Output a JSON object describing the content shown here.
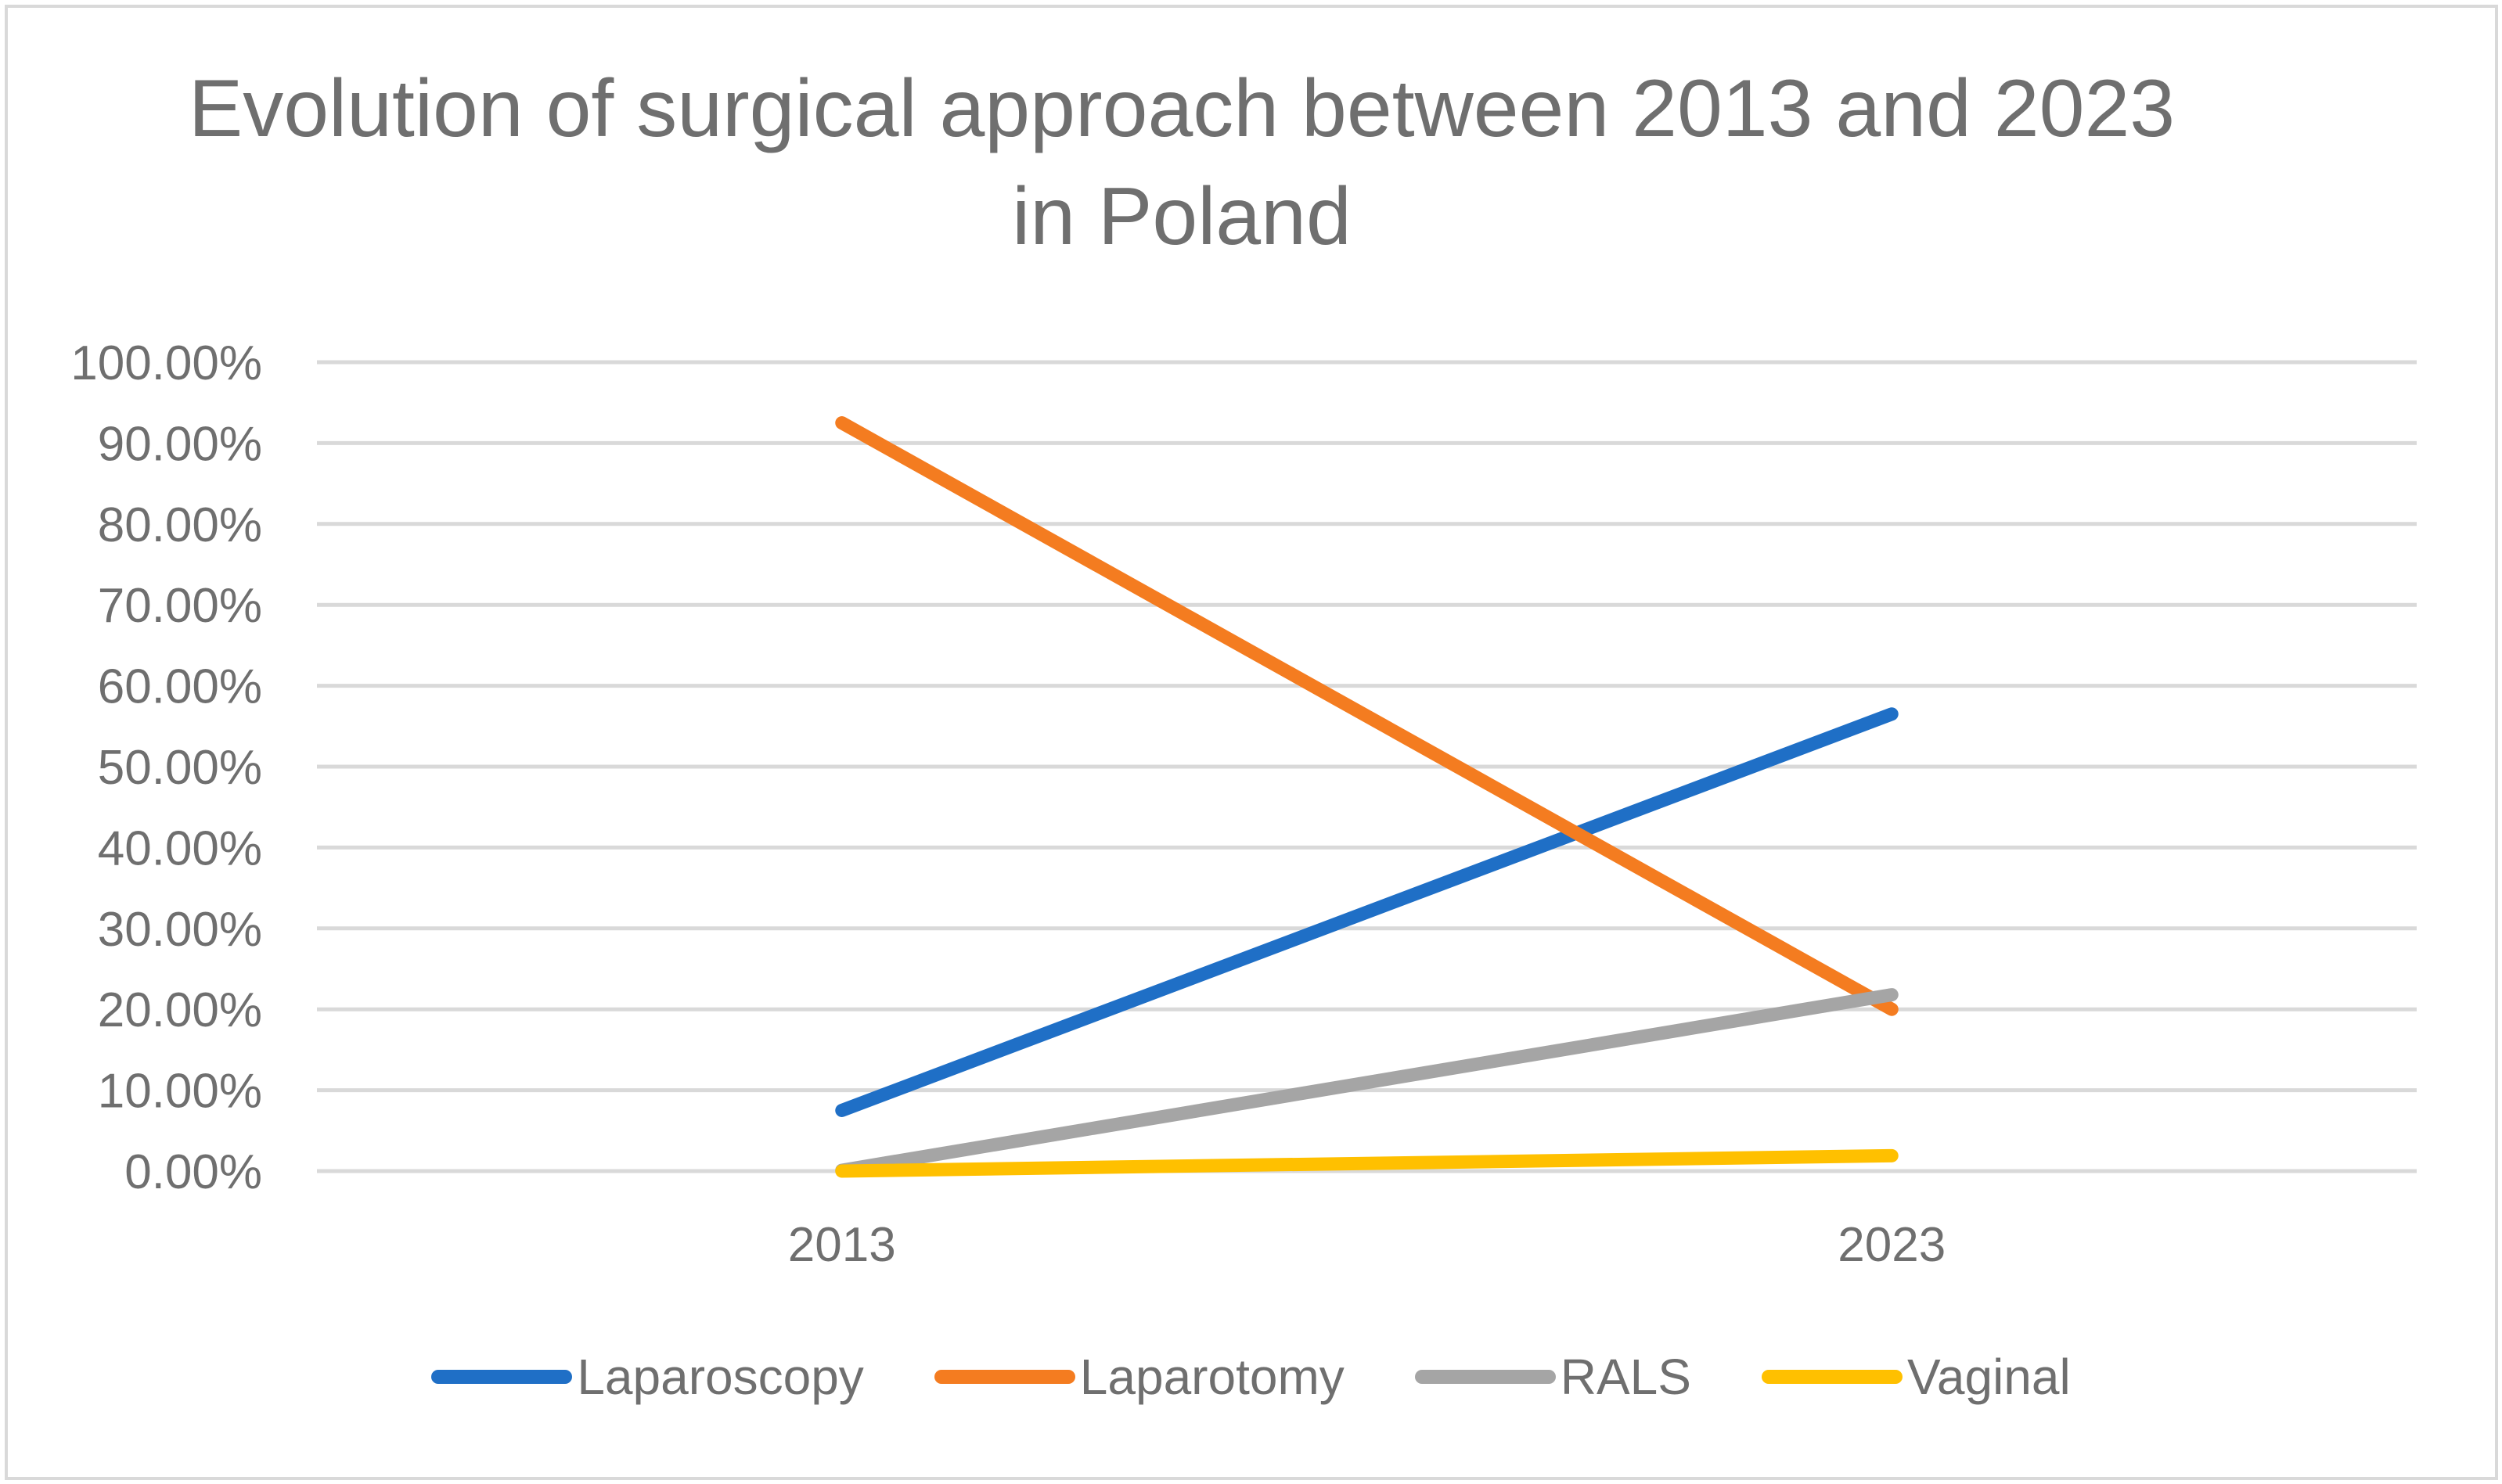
{
  "chart_data": {
    "type": "line",
    "title": "Evolution of surgical approach between 2013 and 2023 in Poland",
    "categories": [
      "2013",
      "2023"
    ],
    "xlabel": "",
    "ylabel": "",
    "ylim": [
      0,
      100
    ],
    "ytick_labels": [
      "0.00%",
      "10.00%",
      "20.00%",
      "30.00%",
      "40.00%",
      "50.00%",
      "60.00%",
      "70.00%",
      "80.00%",
      "90.00%",
      "100.00%"
    ],
    "grid": true,
    "legend_position": "bottom",
    "series": [
      {
        "name": "Laparoscopy",
        "color": "#1f6fc6",
        "values": [
          7.5,
          56.5
        ]
      },
      {
        "name": "Laparotomy",
        "color": "#f47c20",
        "values": [
          92.5,
          20.0
        ]
      },
      {
        "name": "RALS",
        "color": "#a5a5a5",
        "values": [
          0.1,
          21.8
        ]
      },
      {
        "name": "Vaginal",
        "color": "#ffc000",
        "values": [
          0.0,
          1.9
        ]
      }
    ]
  }
}
